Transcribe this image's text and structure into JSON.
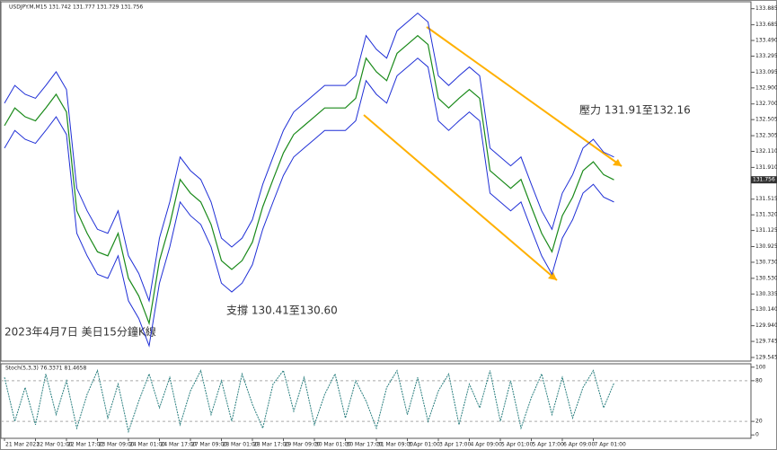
{
  "chart_data": [
    {
      "type": "line",
      "title": "USDJPY.M,M15  131.742 131.777 131.729 131.756",
      "color": "#1a8a1a",
      "band_color": "#1f2fd6",
      "categories": [
        "21 Mar 2023",
        null,
        null,
        "22 Mar 01:00",
        null,
        null,
        "22 Mar 17:00",
        null,
        null,
        "23 Mar 09:00",
        null,
        null,
        "24 Mar 01:00",
        null,
        null,
        "24 Mar 17:00",
        null,
        null,
        "27 Mar 09:00",
        null,
        null,
        "28 Mar 01:00",
        null,
        null,
        "28 Mar 17:00",
        null,
        null,
        "29 Mar 09:00",
        null,
        null,
        "30 Mar 01:00",
        null,
        null,
        "30 Mar 17:00",
        null,
        null,
        "31 Mar 09:00",
        null,
        null,
        "3 Apr 01:00",
        null,
        null,
        "3 Apr 17:00",
        null,
        null,
        "4 Apr 09:00",
        null,
        null,
        "5 Apr 01:00",
        null,
        null,
        "5 Apr 17:00",
        null,
        null,
        "6 Apr 09:00",
        null,
        null,
        "7 Apr 01:00",
        null,
        null
      ],
      "values": [
        132.43,
        132.65,
        132.54,
        132.49,
        132.65,
        132.82,
        132.6,
        131.37,
        131.09,
        130.86,
        130.81,
        131.09,
        130.53,
        130.31,
        129.97,
        130.75,
        131.2,
        131.76,
        131.59,
        131.48,
        131.2,
        130.75,
        130.64,
        130.75,
        130.98,
        131.42,
        131.76,
        132.09,
        132.32,
        132.43,
        132.54,
        132.65,
        132.65,
        132.65,
        132.77,
        133.27,
        133.1,
        132.99,
        133.33,
        133.44,
        133.55,
        133.44,
        132.77,
        132.65,
        132.77,
        132.88,
        132.77,
        131.87,
        131.76,
        131.65,
        131.76,
        131.42,
        131.09,
        130.86,
        131.31,
        131.54,
        131.87,
        131.98,
        131.82,
        131.756
      ],
      "band_upper": [
        132.71,
        132.93,
        132.82,
        132.77,
        132.93,
        133.1,
        132.88,
        131.65,
        131.37,
        131.14,
        131.09,
        131.37,
        130.81,
        130.59,
        130.25,
        131.03,
        131.48,
        132.04,
        131.87,
        131.76,
        131.48,
        131.03,
        130.92,
        131.03,
        131.26,
        131.7,
        132.04,
        132.37,
        132.6,
        132.71,
        132.82,
        132.93,
        132.93,
        132.93,
        133.05,
        133.55,
        133.38,
        133.27,
        133.61,
        133.72,
        133.83,
        133.72,
        133.05,
        132.93,
        133.05,
        133.16,
        133.05,
        132.15,
        132.04,
        131.93,
        132.04,
        131.7,
        131.37,
        131.14,
        131.59,
        131.82,
        132.15,
        132.26,
        132.1,
        132.04
      ],
      "band_lower": [
        132.15,
        132.37,
        132.26,
        132.21,
        132.37,
        132.54,
        132.32,
        131.09,
        130.81,
        130.58,
        130.53,
        130.81,
        130.25,
        130.03,
        129.69,
        130.47,
        130.92,
        131.48,
        131.31,
        131.2,
        130.92,
        130.47,
        130.36,
        130.47,
        130.7,
        131.14,
        131.48,
        131.81,
        132.04,
        132.15,
        132.26,
        132.37,
        132.37,
        132.37,
        132.49,
        132.99,
        132.82,
        132.71,
        133.05,
        133.16,
        133.27,
        133.16,
        132.49,
        132.37,
        132.49,
        132.6,
        132.49,
        131.59,
        131.48,
        131.37,
        131.48,
        131.14,
        130.81,
        130.58,
        131.03,
        131.26,
        131.59,
        131.7,
        131.54,
        131.48
      ],
      "ylim": [
        129.5,
        133.96
      ],
      "yticks": [
        133.885,
        133.685,
        {
          "value": 133.49,
          "label": "133.490"
        },
        133.295,
        133.095,
        {
          "value": 132.9,
          "label": "132.900"
        },
        {
          "value": 132.7,
          "label": "132.700"
        },
        132.505,
        132.305,
        {
          "value": 132.11,
          "label": "132.110"
        },
        {
          "value": 131.91,
          "label": "131.910"
        },
        131.515,
        {
          "value": 131.32,
          "label": "131.320"
        },
        131.125,
        130.925,
        {
          "value": 130.73,
          "label": "130.730"
        },
        {
          "value": 130.53,
          "label": "130.530"
        },
        130.335,
        {
          "value": 130.14,
          "label": "130.140"
        },
        {
          "value": 129.94,
          "label": "129.940"
        },
        129.745,
        129.545
      ],
      "last_price": 131.756,
      "annotations": [
        "壓力 131.91至132.16",
        "支撐 130.41至130.60",
        "2023年4月7日 美日15分鐘K線"
      ]
    },
    {
      "type": "line",
      "title": "Stoch(5,3,3) 76.3371 81.4658",
      "color": "#2a7f7f",
      "values": [
        85,
        20,
        70,
        15,
        90,
        30,
        80,
        10,
        60,
        95,
        25,
        75,
        5,
        50,
        90,
        40,
        85,
        15,
        65,
        95,
        30,
        80,
        20,
        90,
        45,
        10,
        75,
        95,
        35,
        85,
        15,
        60,
        90,
        25,
        80,
        50,
        10,
        70,
        95,
        30,
        85,
        20,
        65,
        90,
        15,
        75,
        40,
        95,
        20,
        80,
        10,
        55,
        90,
        30,
        85,
        25,
        70,
        95,
        40,
        76.3371
      ],
      "ylim": [
        -5,
        105
      ],
      "yticks": [
        100,
        80,
        20,
        0
      ],
      "levels": [
        80,
        20
      ]
    }
  ]
}
